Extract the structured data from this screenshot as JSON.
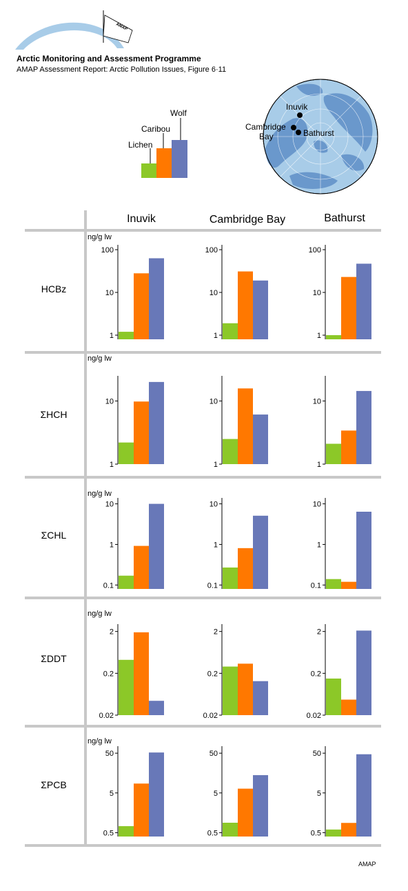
{
  "header": {
    "logo_text": "AMAP",
    "org_title": "Arctic Monitoring and Assessment Programme",
    "report_title": "AMAP Assessment Report: Arctic Pollution Issues, Figure 6·11"
  },
  "legend": {
    "items": [
      {
        "label": "Lichen",
        "color": "#8cc828"
      },
      {
        "label": "Caribou",
        "color": "#ff7800"
      },
      {
        "label": "Wolf",
        "color": "#6878b8"
      }
    ]
  },
  "map": {
    "labels": [
      "Inuvik",
      "Cambridge",
      "Bay",
      "Bathurst"
    ],
    "ocean_color": "#a8cce8",
    "land_color": "#6a98cc"
  },
  "columns": [
    "Inuvik",
    "Cambridge Bay",
    "Bathurst"
  ],
  "unit_label": "ng/g lw",
  "footer": "AMAP",
  "chart_data": [
    {
      "type": "bar",
      "row_label": "HCBz",
      "scale": "log",
      "ylim": [
        0.8,
        130
      ],
      "ytick_values": [
        1,
        10,
        100
      ],
      "ytick_labels": [
        "1",
        "10",
        "100"
      ],
      "categories": [
        "Inuvik",
        "Cambridge Bay",
        "Bathurst"
      ],
      "series": [
        {
          "name": "Lichen",
          "values": [
            1.2,
            1.9,
            1.0
          ]
        },
        {
          "name": "Caribou",
          "values": [
            28,
            31,
            23
          ]
        },
        {
          "name": "Wolf",
          "values": [
            63,
            19,
            47
          ]
        }
      ]
    },
    {
      "type": "bar",
      "row_label": "ΣHCH",
      "scale": "log",
      "ylim": [
        1,
        25
      ],
      "ytick_values": [
        1,
        10
      ],
      "ytick_labels": [
        "1",
        "10"
      ],
      "categories": [
        "Inuvik",
        "Cambridge Bay",
        "Bathurst"
      ],
      "series": [
        {
          "name": "Lichen",
          "values": [
            2.2,
            2.5,
            2.1
          ]
        },
        {
          "name": "Caribou",
          "values": [
            9.8,
            15.8,
            3.4
          ]
        },
        {
          "name": "Wolf",
          "values": [
            20,
            6.1,
            14.4
          ]
        }
      ]
    },
    {
      "type": "bar",
      "row_label": "ΣCHL",
      "scale": "log",
      "ylim": [
        0.08,
        14
      ],
      "ytick_values": [
        0.1,
        1,
        10
      ],
      "ytick_labels": [
        "0.1",
        "1",
        "10"
      ],
      "categories": [
        "Inuvik",
        "Cambridge Bay",
        "Bathurst"
      ],
      "series": [
        {
          "name": "Lichen",
          "values": [
            0.17,
            0.27,
            0.14
          ]
        },
        {
          "name": "Caribou",
          "values": [
            0.92,
            0.81,
            0.12
          ]
        },
        {
          "name": "Wolf",
          "values": [
            10,
            5.1,
            6.4
          ]
        }
      ]
    },
    {
      "type": "bar",
      "row_label": "ΣDDT",
      "scale": "log",
      "ylim": [
        0.02,
        3
      ],
      "ytick_values": [
        0.02,
        0.2,
        2
      ],
      "ytick_labels": [
        "0.02",
        "0.2",
        "2"
      ],
      "categories": [
        "Inuvik",
        "Cambridge Bay",
        "Bathurst"
      ],
      "series": [
        {
          "name": "Lichen",
          "values": [
            0.42,
            0.29,
            0.15
          ]
        },
        {
          "name": "Caribou",
          "values": [
            1.91,
            0.34,
            0.047
          ]
        },
        {
          "name": "Wolf",
          "values": [
            0.044,
            0.13,
            2.1
          ]
        }
      ]
    },
    {
      "type": "bar",
      "row_label": "ΣPCB",
      "scale": "log",
      "ylim": [
        0.4,
        75
      ],
      "ytick_values": [
        0.5,
        5,
        50
      ],
      "ytick_labels": [
        "0.5",
        "5",
        "50"
      ],
      "categories": [
        "Inuvik",
        "Cambridge Bay",
        "Bathurst"
      ],
      "series": [
        {
          "name": "Lichen",
          "values": [
            0.73,
            0.89,
            0.6
          ]
        },
        {
          "name": "Caribou",
          "values": [
            8.6,
            6.4,
            0.88
          ]
        },
        {
          "name": "Wolf",
          "values": [
            52,
            14,
            47
          ]
        }
      ]
    }
  ]
}
